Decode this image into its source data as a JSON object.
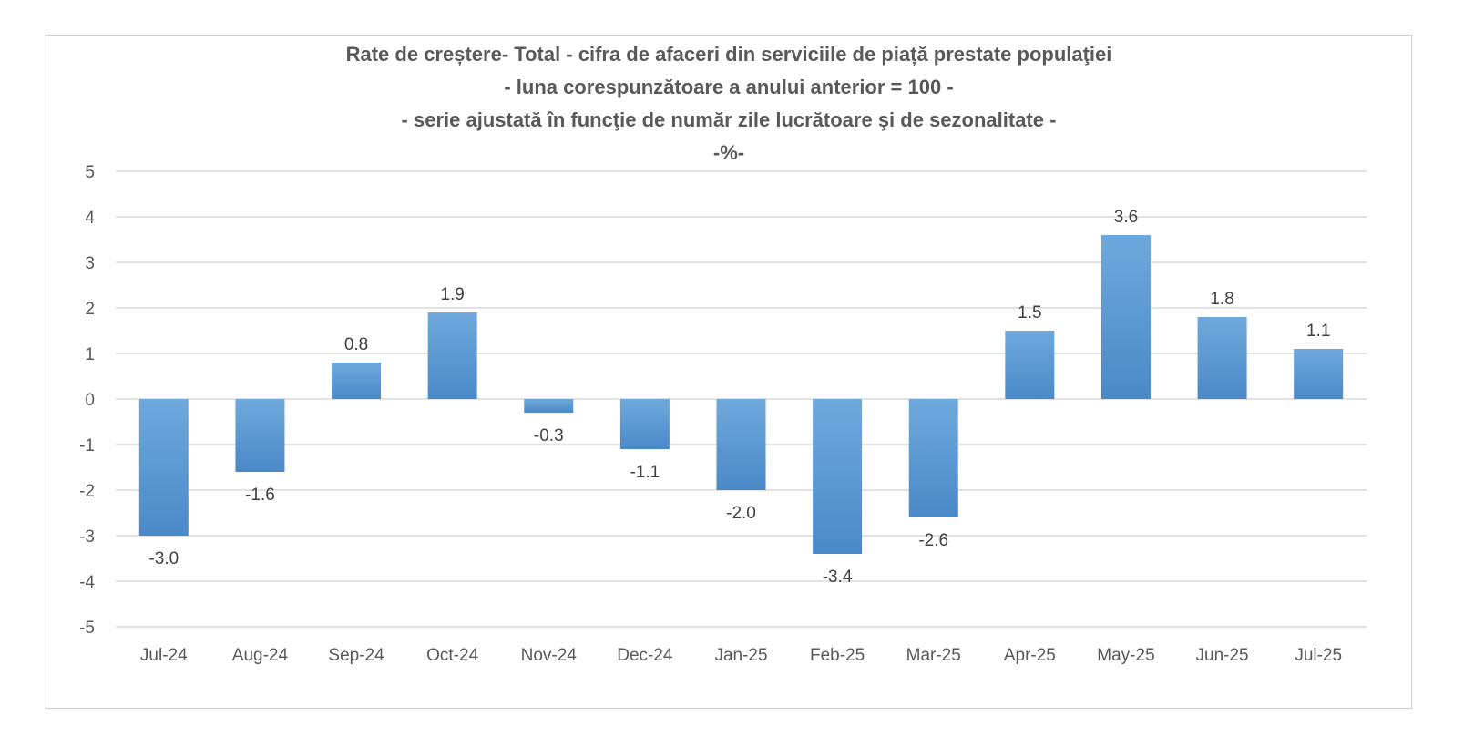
{
  "chart_data": {
    "type": "bar",
    "title_lines": [
      "Rate de creștere- Total -  cifra de afaceri din serviciile de piață prestate populaţiei",
      "- luna corespunzătoare a anului anterior = 100 -",
      "- serie ajustată în funcţie de număr zile lucrătoare şi de sezonalitate -",
      "-%-"
    ],
    "categories": [
      "Jul-24",
      "Aug-24",
      "Sep-24",
      "Oct-24",
      "Nov-24",
      "Dec-24",
      "Jan-25",
      "Feb-25",
      "Mar-25",
      "Apr-25",
      "May-25",
      "Jun-25",
      "Jul-25"
    ],
    "values": [
      -3.0,
      -1.6,
      0.8,
      1.9,
      -0.3,
      -1.1,
      -2.0,
      -3.4,
      -2.6,
      1.5,
      3.6,
      1.8,
      1.1
    ],
    "data_labels": [
      "-3.0",
      "-1.6",
      "0.8",
      "1.9",
      "-0.3",
      "-1.1",
      "-2.0",
      "-3.4",
      "-2.6",
      "1.5",
      "3.6",
      "1.8",
      "1.1"
    ],
    "yticks": [
      "5",
      "4",
      "3",
      "2",
      "1",
      "0",
      "-1",
      "-2",
      "-3",
      "-4",
      "-5"
    ],
    "ylim": [
      -5,
      5
    ],
    "grid": true,
    "legend": "none",
    "bar_color": "#5b9bd5"
  }
}
